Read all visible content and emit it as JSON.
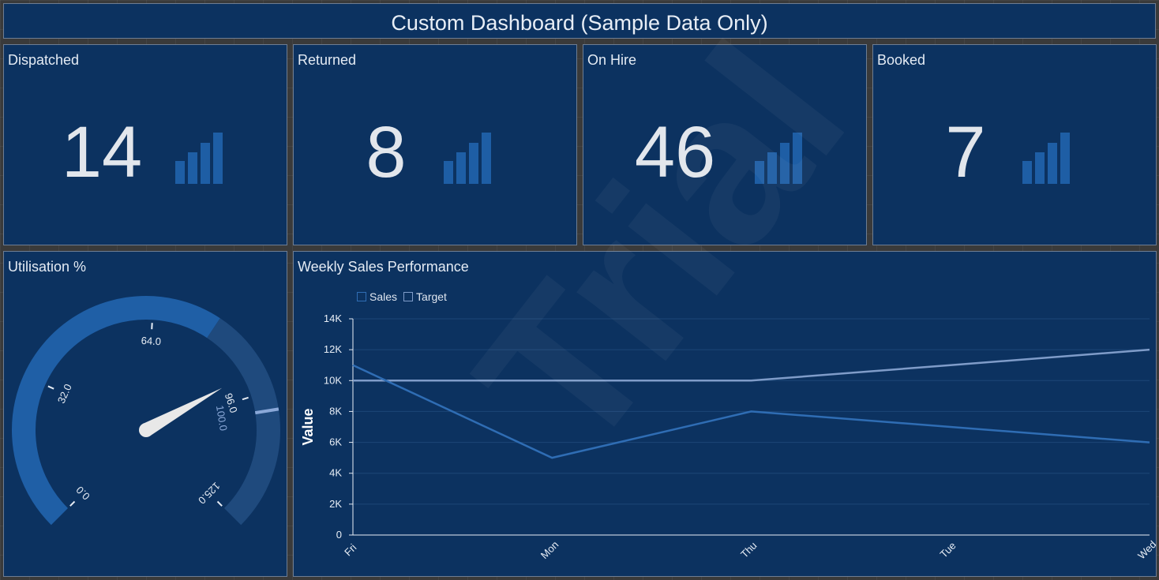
{
  "dashboard": {
    "title": "Custom Dashboard (Sample Data Only)"
  },
  "kpis": [
    {
      "label": "Dispatched",
      "value": "14"
    },
    {
      "label": "Returned",
      "value": "8"
    },
    {
      "label": "On Hire",
      "value": "46"
    },
    {
      "label": "Booked",
      "value": "7"
    }
  ],
  "kpi_icon": "signal-bars-icon",
  "gauge": {
    "title": "Utilisation %",
    "min": 0,
    "max": 125,
    "ticks": [
      "0.0",
      "32.0",
      "64.0",
      "96.0",
      "125.0"
    ],
    "value": 100,
    "value_label": "100.0",
    "filled_color": "#1f5fa6",
    "track_color": "#1f4a7d"
  },
  "watermark": "Trial",
  "chart_data": {
    "type": "line",
    "title": "Weekly Sales Performance",
    "xlabel": "",
    "ylabel": "Value",
    "categories": [
      "Fri",
      "Mon",
      "Thu",
      "Tue",
      "Wed"
    ],
    "series": [
      {
        "name": "Sales",
        "values": [
          11000,
          5000,
          8000,
          7000,
          6000
        ],
        "color": "#2f6db4"
      },
      {
        "name": "Target",
        "values": [
          10000,
          10000,
          10000,
          11000,
          12000
        ],
        "color": "#7f9cc9"
      }
    ],
    "ylim": [
      0,
      14000
    ],
    "yticks": [
      "0",
      "2K",
      "4K",
      "6K",
      "8K",
      "10K",
      "12K",
      "14K"
    ],
    "grid": true,
    "legend": "top-left"
  }
}
